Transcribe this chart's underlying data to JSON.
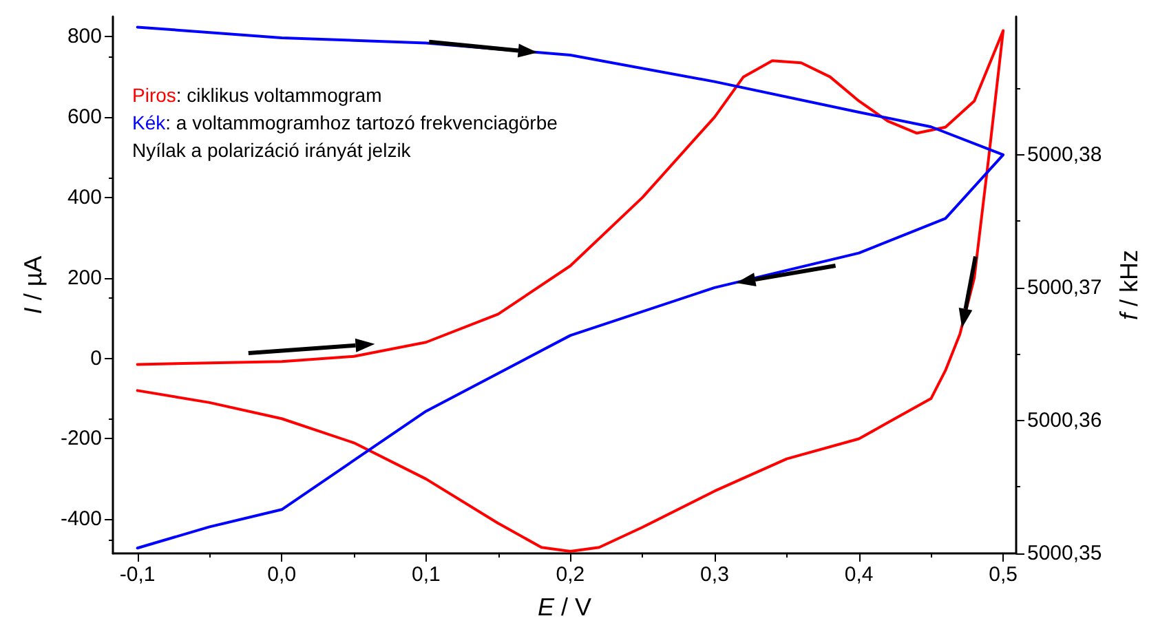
{
  "chart_data": {
    "type": "line",
    "xlabel": "E / V",
    "ylabel": "I / µA",
    "y2label": "f / kHz",
    "xlim": [
      -0.117,
      0.509
    ],
    "xticks": [
      {
        "value": -0.1,
        "label": "-0,1"
      },
      {
        "value": 0,
        "label": "0,0"
      },
      {
        "value": 0.1,
        "label": "0,1"
      },
      {
        "value": 0.2,
        "label": "0,2"
      },
      {
        "value": 0.3,
        "label": "0,3"
      },
      {
        "value": 0.4,
        "label": "0,4"
      },
      {
        "value": 0.5,
        "label": "0,5"
      }
    ],
    "ylim": [
      -485,
      850
    ],
    "yticks": [
      -400,
      -200,
      0,
      200,
      400,
      600,
      800
    ],
    "y2lim": [
      5000.35,
      5000.3904
    ],
    "y2ticks": [
      {
        "value": 5000.35,
        "label": "5000,35"
      },
      {
        "value": 5000.36,
        "label": "5000,36"
      },
      {
        "value": 5000.37,
        "label": "5000,37"
      },
      {
        "value": 5000.38,
        "label": "5000,38"
      }
    ],
    "grid": false,
    "marker": "none",
    "line_style": "solid",
    "annotations": [
      "Piros: ciklikus voltammogram",
      "Kék: a voltammogramhoz tartozó frekvenciagörbe",
      "Nyílak a polarizáció irányát jelzik"
    ],
    "series": [
      {
        "color": "#ff0000",
        "x": [
          -0.1,
          0,
          0.05,
          0.1,
          0.15,
          0.2,
          0.25,
          0.3,
          0.32,
          0.34,
          0.36,
          0.38,
          0.4,
          0.42,
          0.44,
          0.46,
          0.48,
          0.5,
          0.49,
          0.48,
          0.47,
          0.46,
          0.45,
          0.42,
          0.4,
          0.35,
          0.3,
          0.25,
          0.22,
          0.2,
          0.18,
          0.15,
          0.1,
          0.05,
          0,
          -0.05,
          -0.1
        ],
        "values": [
          -15,
          -8,
          5,
          40,
          110,
          230,
          400,
          600,
          700,
          740,
          735,
          700,
          640,
          590,
          560,
          575,
          640,
          815,
          500,
          200,
          60,
          -30,
          -100,
          -160,
          -200,
          -250,
          -330,
          -420,
          -470,
          -480,
          -470,
          -410,
          -300,
          -210,
          -150,
          -110,
          -80
        ]
      },
      {
        "color": "#0000ff",
        "axis": "y2",
        "x": [
          -0.1,
          0,
          0.1,
          0.2,
          0.3,
          0.4,
          0.45,
          0.5,
          0.46,
          0.4,
          0.3,
          0.2,
          0.1,
          0,
          -0.05,
          -0.1
        ],
        "values": [
          5000.3896,
          5000.3888,
          5000.3884,
          5000.3875,
          5000.3855,
          5000.3832,
          5000.3821,
          5000.38,
          5000.3752,
          5000.3726,
          5000.37,
          5000.3664,
          5000.3607,
          5000.3533,
          5000.352,
          5000.3504
        ]
      }
    ]
  }
}
